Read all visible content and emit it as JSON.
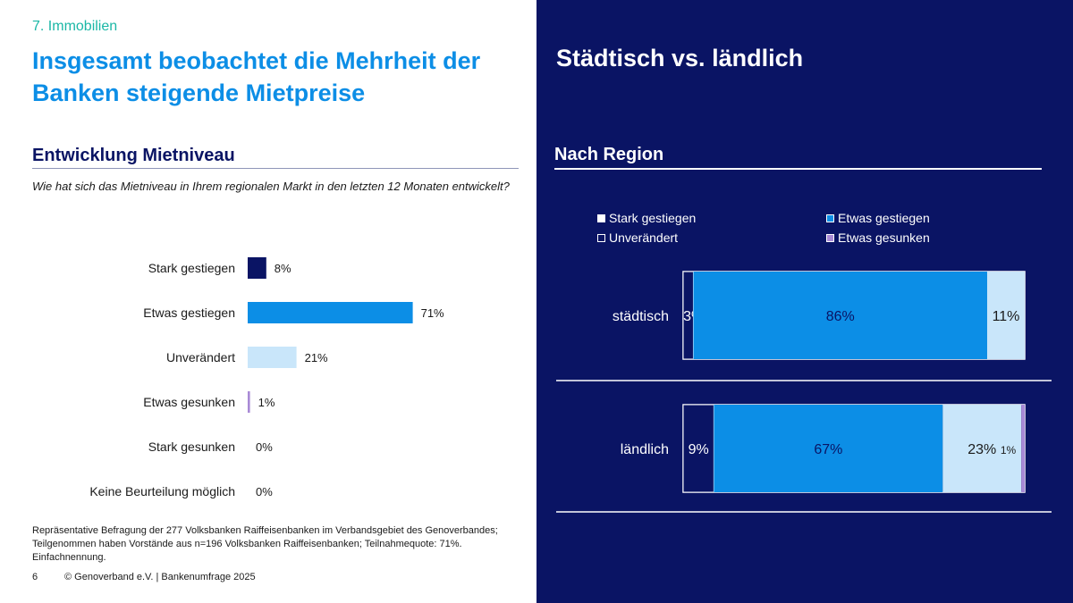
{
  "left": {
    "section_label": "7. Immobilien",
    "headline": "Insgesamt beobachtet die Mehrheit der Banken steigende Mietpreise",
    "subtitle": "Entwicklung Mietniveau",
    "question": "Wie hat sich das Mietniveau in Ihrem regionalen Markt in den letzten 12 Monaten entwickelt?",
    "footnote": "Repräsentative Befragung der 277 Volksbanken Raiffeisenbanken im Verbandsgebiet des Genoverbandes; Teilgenommen haben Vorstände aus n=196 Volksbanken Raiffeisenbanken; Teilnahmequote: 71%. Einfachnennung.",
    "page_number": "6",
    "copyright": "© Genoverband e.V. | Bankenumfrage 2025"
  },
  "right": {
    "title": "Städtisch vs. ländlich",
    "subtitle": "Nach Region"
  },
  "colors": {
    "navy": "#0a1464",
    "blue": "#0c8ee6",
    "light_blue": "#c9e6fa",
    "purple": "#a98ad6",
    "teal": "#1bb7a6"
  },
  "chart_data": [
    {
      "type": "bar",
      "orientation": "horizontal",
      "title": "Entwicklung Mietniveau",
      "categories": [
        "Stark gestiegen",
        "Etwas gestiegen",
        "Unverändert",
        "Etwas gesunken",
        "Stark gesunken",
        "Keine Beurteilung möglich"
      ],
      "values": [
        8,
        71,
        21,
        1,
        0,
        0
      ],
      "value_labels": [
        "8%",
        "71%",
        "21%",
        "1%",
        "0%",
        "0%"
      ],
      "bar_colors": [
        "#0a1464",
        "#0c8ee6",
        "#c9e6fa",
        "#a98ad6",
        "#c9e6fa",
        "#c9e6fa"
      ],
      "xlim": [
        0,
        100
      ]
    },
    {
      "type": "bar",
      "orientation": "horizontal",
      "stacked": true,
      "title": "Nach Region",
      "categories": [
        "städtisch",
        "ländlich"
      ],
      "series": [
        {
          "name": "Stark gestiegen",
          "values": [
            3,
            9
          ],
          "labels": [
            "3%",
            "9%"
          ],
          "color": "#0a1464"
        },
        {
          "name": "Etwas gestiegen",
          "values": [
            86,
            67
          ],
          "labels": [
            "86%",
            "67%"
          ],
          "color": "#0c8ee6"
        },
        {
          "name": "Unverändert",
          "values": [
            11,
            23
          ],
          "labels": [
            "11%",
            "23%"
          ],
          "color": "#c9e6fa"
        },
        {
          "name": "Etwas gesunken",
          "values": [
            0,
            1
          ],
          "labels": [
            "",
            "1%"
          ],
          "color": "#a98ad6"
        }
      ],
      "legend_position": "top",
      "xlim": [
        0,
        100
      ]
    }
  ]
}
